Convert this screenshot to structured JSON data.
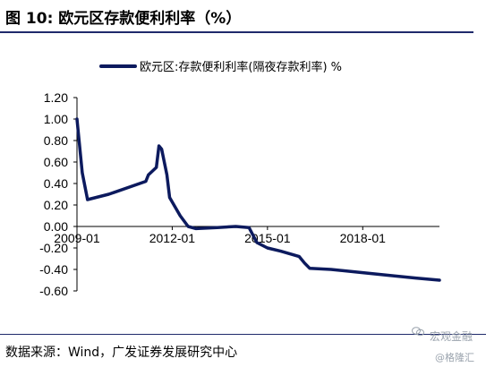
{
  "header": {
    "title": "图 10:  欧元区存款便利利率（%）"
  },
  "footer": {
    "source": "数据来源：Wind，广发证券发展研究中心"
  },
  "watermarks": {
    "line1": "宏观金融",
    "line2": "@格隆汇"
  },
  "colors": {
    "series": "#0c1a5e",
    "rule": "#1f2a6b",
    "axis": "#000000",
    "watermark": "#9aa3ad"
  },
  "chart_data": {
    "type": "line",
    "title": "",
    "xlabel": "",
    "ylabel": "",
    "ylim": [
      -0.6,
      1.2
    ],
    "yticks": [
      1.2,
      1.0,
      0.8,
      0.6,
      0.4,
      0.2,
      0.0,
      -0.2,
      -0.4,
      -0.6
    ],
    "ytick_labels": [
      "1.20",
      "1.00",
      "0.80",
      "0.60",
      "0.40",
      "0.20",
      "0.00",
      "-0.20",
      "-0.40",
      "-0.60"
    ],
    "xlim": [
      "2009-01",
      "2020-06"
    ],
    "xticks": [
      "2009-01",
      "2012-01",
      "2015-01",
      "2018-01"
    ],
    "grid": false,
    "legend_position": "top",
    "series": [
      {
        "name": "欧元区:存款便利利率(隔夜存款利率) %",
        "points": [
          [
            "2009-01",
            1.0
          ],
          [
            "2009-03",
            0.5
          ],
          [
            "2009-05",
            0.25
          ],
          [
            "2010-01",
            0.3
          ],
          [
            "2011-03",
            0.42
          ],
          [
            "2011-04",
            0.48
          ],
          [
            "2011-07",
            0.55
          ],
          [
            "2011-08",
            0.75
          ],
          [
            "2011-09",
            0.72
          ],
          [
            "2011-11",
            0.48
          ],
          [
            "2011-12",
            0.27
          ],
          [
            "2012-04",
            0.1
          ],
          [
            "2012-07",
            0.0
          ],
          [
            "2012-10",
            -0.02
          ],
          [
            "2013-06",
            -0.01
          ],
          [
            "2014-01",
            0.0
          ],
          [
            "2014-06",
            -0.01
          ],
          [
            "2014-09",
            -0.15
          ],
          [
            "2015-01",
            -0.2
          ],
          [
            "2015-06",
            -0.23
          ],
          [
            "2016-01",
            -0.28
          ],
          [
            "2016-03",
            -0.34
          ],
          [
            "2016-05",
            -0.39
          ],
          [
            "2017-01",
            -0.4
          ],
          [
            "2018-01",
            -0.43
          ],
          [
            "2019-01",
            -0.46
          ],
          [
            "2019-09",
            -0.48
          ],
          [
            "2020-06",
            -0.5
          ]
        ]
      }
    ]
  }
}
